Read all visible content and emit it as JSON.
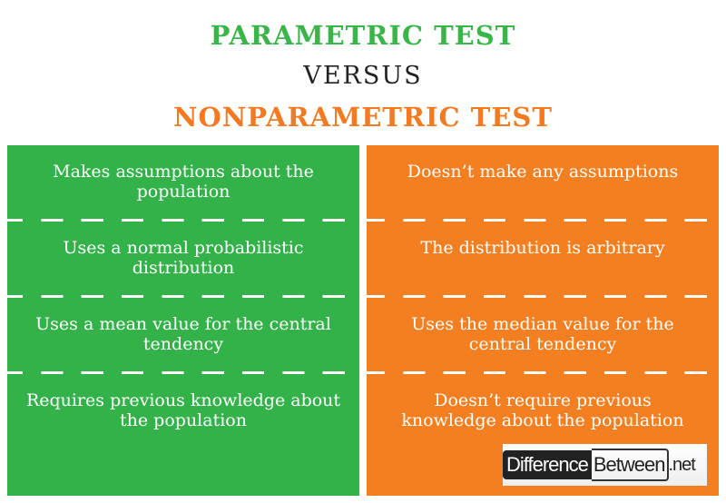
{
  "title": {
    "left": "PARAMETRIC TEST",
    "middle": "VERSUS",
    "right": "NONPARAMETRIC TEST"
  },
  "colors": {
    "green": "#33b24a",
    "orange": "#f47f20"
  },
  "rows": [
    {
      "left": "Makes assumptions about the population",
      "right": "Doesn’t make any assumptions"
    },
    {
      "left": "Uses a normal probabilistic distribution",
      "right": "The distribution is arbitrary"
    },
    {
      "left": "Uses a mean value for the central tendency",
      "right": "Uses the median value for the central tendency"
    },
    {
      "left": "Requires previous knowledge about the population",
      "right": "Doesn’t require previous knowledge about the population"
    }
  ],
  "logo": {
    "part1": "Difference",
    "part2": "Between",
    "part3": ".net"
  }
}
